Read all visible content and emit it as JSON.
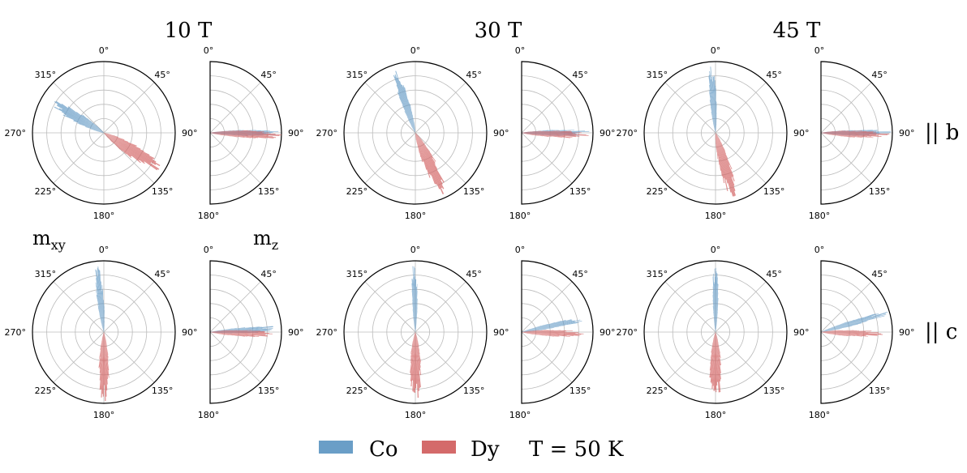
{
  "chart_data": {
    "type": "polar-histogram",
    "title": "",
    "temperature_label": "T = 50 K",
    "column_titles": [
      "10 T",
      "30 T",
      "45 T"
    ],
    "row_labels": [
      "|| b",
      "|| c"
    ],
    "component_labels": {
      "xy": "m",
      "xy_sub": "xy",
      "z": "m",
      "z_sub": "z"
    },
    "theta_ticks_full": [
      "0°",
      "45°",
      "90°",
      "135°",
      "180°",
      "225°",
      "270°",
      "315°"
    ],
    "theta_ticks_half": [
      "0°",
      "45°",
      "90°",
      "135°",
      "180°"
    ],
    "legend": [
      {
        "name": "Co",
        "color": "#6a9ec7"
      },
      {
        "name": "Dy",
        "color": "#d46a6a"
      }
    ],
    "colors": {
      "Co": "#6a9ec7",
      "Dy": "#d46a6a",
      "grid": "#bbbbbb",
      "axis": "#000000"
    },
    "panels": [
      {
        "row": 0,
        "col": 0,
        "xy": {
          "Co": {
            "center_deg": 300,
            "spread_deg": 8,
            "extent": 0.78
          },
          "Dy": {
            "center_deg": 122,
            "spread_deg": 9,
            "extent": 0.88
          }
        },
        "z": {
          "Co": {
            "center_deg": 90,
            "spread_deg": 4,
            "extent": 0.9
          },
          "Dy": {
            "center_deg": 92,
            "spread_deg": 5,
            "extent": 0.9
          }
        }
      },
      {
        "row": 0,
        "col": 1,
        "xy": {
          "Co": {
            "center_deg": 342,
            "spread_deg": 6,
            "extent": 0.82
          },
          "Dy": {
            "center_deg": 155,
            "spread_deg": 9,
            "extent": 0.83
          }
        },
        "z": {
          "Co": {
            "center_deg": 90,
            "spread_deg": 4,
            "extent": 0.88
          },
          "Dy": {
            "center_deg": 92,
            "spread_deg": 5,
            "extent": 0.82
          }
        },
        "xy_sub": "",
        "z_sub": ""
      },
      {
        "row": 0,
        "col": 2,
        "xy": {
          "Co": {
            "center_deg": 356,
            "spread_deg": 5,
            "extent": 0.83
          },
          "Dy": {
            "center_deg": 164,
            "spread_deg": 8,
            "extent": 0.85
          }
        },
        "z": {
          "Co": {
            "center_deg": 90,
            "spread_deg": 4,
            "extent": 0.9
          },
          "Dy": {
            "center_deg": 92,
            "spread_deg": 5,
            "extent": 0.85
          }
        }
      },
      {
        "row": 1,
        "col": 0,
        "xy": {
          "Co": {
            "center_deg": 354,
            "spread_deg": 5,
            "extent": 0.83
          },
          "Dy": {
            "center_deg": 180,
            "spread_deg": 7,
            "extent": 0.87
          }
        },
        "z": {
          "Co": {
            "center_deg": 87,
            "spread_deg": 4,
            "extent": 0.9
          },
          "Dy": {
            "center_deg": 92,
            "spread_deg": 5,
            "extent": 0.8
          }
        }
      },
      {
        "row": 1,
        "col": 1,
        "xy": {
          "Co": {
            "center_deg": 359,
            "spread_deg": 4,
            "extent": 0.85
          },
          "Dy": {
            "center_deg": 180,
            "spread_deg": 8,
            "extent": 0.86
          }
        },
        "z": {
          "Co": {
            "center_deg": 78,
            "spread_deg": 4,
            "extent": 0.87
          },
          "Dy": {
            "center_deg": 92,
            "spread_deg": 5,
            "extent": 0.8
          }
        }
      },
      {
        "row": 1,
        "col": 2,
        "xy": {
          "Co": {
            "center_deg": 0,
            "spread_deg": 4,
            "extent": 0.85
          },
          "Dy": {
            "center_deg": 180,
            "spread_deg": 8,
            "extent": 0.86
          }
        },
        "z": {
          "Co": {
            "center_deg": 74,
            "spread_deg": 4,
            "extent": 0.88
          },
          "Dy": {
            "center_deg": 92,
            "spread_deg": 5,
            "extent": 0.78
          }
        }
      }
    ]
  }
}
